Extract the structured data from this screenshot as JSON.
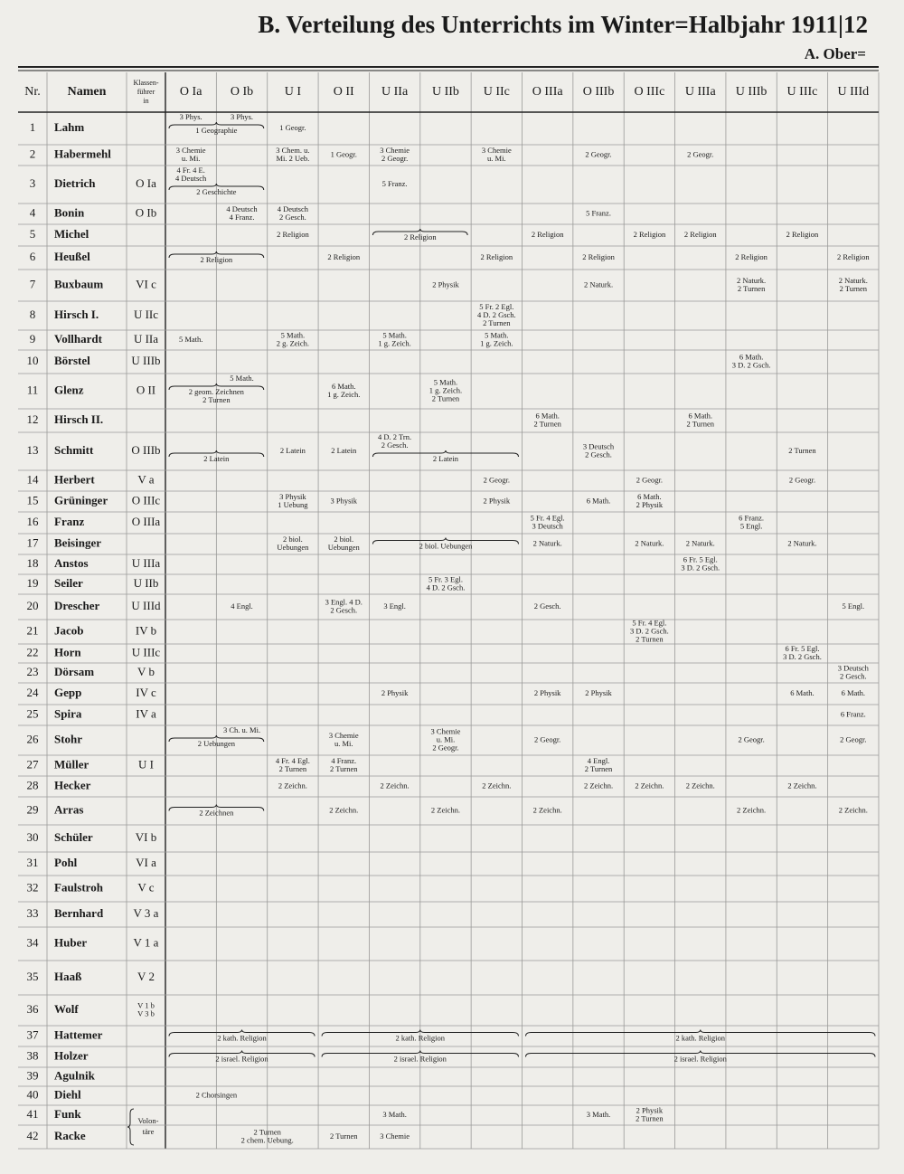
{
  "header": {
    "title": "B. Verteilung des Unterrichts im Winter=Halbjahr 1911|12",
    "section": "A. Ober="
  },
  "table": {
    "columns": {
      "nr": "Nr.",
      "name": "Namen",
      "leader": [
        "Klassen-",
        "führer",
        "in"
      ],
      "classes": [
        "O Ia",
        "O Ib",
        "U I",
        "O II",
        "U IIa",
        "U IIb",
        "U IIc",
        "O IIIa",
        "O IIIb",
        "O IIIc",
        "U IIIa",
        "U IIIb",
        "U IIIc",
        "U IIId"
      ]
    },
    "rows": [
      {
        "nr": 1,
        "name": "Lahm",
        "entries": [
          {
            "col": 0,
            "text": "3 Phys."
          },
          {
            "col": 1,
            "text": "3 Phys."
          },
          {
            "col": 0,
            "span": 2,
            "brace": true,
            "text": "1 Geographie"
          },
          {
            "col": 2,
            "text": "1 Geogr."
          }
        ]
      },
      {
        "nr": 2,
        "name": "Habermehl",
        "entries": [
          {
            "col": 0,
            "text": [
              "3 Chemie",
              "u. Mi."
            ]
          },
          {
            "col": 2,
            "text": [
              "3 Chem. u.",
              "Mi. 2 Ueb."
            ]
          },
          {
            "col": 3,
            "text": "1 Geogr."
          },
          {
            "col": 4,
            "text": [
              "3 Chemie",
              "2 Geogr."
            ]
          },
          {
            "col": 6,
            "text": [
              "3 Chemie",
              "u. Mi."
            ]
          },
          {
            "col": 8,
            "text": "2 Geogr."
          },
          {
            "col": 10,
            "text": "2 Geogr."
          }
        ]
      },
      {
        "nr": 3,
        "name": "Dietrich",
        "leader": "O Ia",
        "entries": [
          {
            "col": 0,
            "text": [
              "4 Fr. 4 E.",
              "4 Deutsch"
            ]
          },
          {
            "col": 0,
            "span": 2,
            "brace": true,
            "text": "2 Geschichte"
          },
          {
            "col": 4,
            "text": "5 Franz."
          }
        ]
      },
      {
        "nr": 4,
        "name": "Bonin",
        "leader": "O Ib",
        "entries": [
          {
            "col": 1,
            "text": [
              "4 Deutsch",
              "4 Franz."
            ]
          },
          {
            "col": 2,
            "text": [
              "4 Deutsch",
              "2 Gesch."
            ]
          },
          {
            "col": 8,
            "text": "5 Franz."
          }
        ]
      },
      {
        "nr": 5,
        "name": "Michel",
        "entries": [
          {
            "col": 2,
            "text": "2 Religion"
          },
          {
            "col": 4,
            "span": 2,
            "brace": true,
            "text": "2 Religion"
          },
          {
            "col": 7,
            "text": "2 Religion"
          },
          {
            "col": 9,
            "text": "2 Religion"
          },
          {
            "col": 10,
            "text": "2 Religion"
          },
          {
            "col": 12,
            "text": "2 Religion"
          }
        ]
      },
      {
        "nr": 6,
        "name": "Heußel",
        "entries": [
          {
            "col": 0,
            "span": 2,
            "brace": true,
            "text": "2 Religion"
          },
          {
            "col": 3,
            "text": "2 Religion"
          },
          {
            "col": 6,
            "text": "2 Religion"
          },
          {
            "col": 8,
            "text": "2 Religion"
          },
          {
            "col": 11,
            "text": "2 Religion"
          },
          {
            "col": 13,
            "text": "2 Religion"
          }
        ]
      },
      {
        "nr": 7,
        "name": "Buxbaum",
        "leader": "VI c",
        "entries": [
          {
            "col": 5,
            "text": "2 Physik"
          },
          {
            "col": 8,
            "text": "2 Naturk."
          },
          {
            "col": 11,
            "text": [
              "2 Naturk.",
              "2 Turnen"
            ]
          },
          {
            "col": 13,
            "text": [
              "2 Naturk.",
              "2 Turnen"
            ]
          }
        ]
      },
      {
        "nr": 8,
        "name": "Hirsch I.",
        "leader": "U IIc",
        "entries": [
          {
            "col": 6,
            "text": [
              "5 Fr. 2 Egl.",
              "4 D. 2 Gsch.",
              "2 Turnen"
            ]
          }
        ]
      },
      {
        "nr": 9,
        "name": "Vollhardt",
        "leader": "U IIa",
        "entries": [
          {
            "col": 0,
            "text": "5 Math."
          },
          {
            "col": 2,
            "text": [
              "5 Math.",
              "2 g. Zeich."
            ]
          },
          {
            "col": 4,
            "text": [
              "5 Math.",
              "1 g. Zeich."
            ]
          },
          {
            "col": 6,
            "text": [
              "5 Math.",
              "1 g. Zeich."
            ]
          }
        ]
      },
      {
        "nr": 10,
        "name": "Börstel",
        "leader": "U IIIb",
        "entries": [
          {
            "col": 11,
            "text": [
              "6 Math.",
              "3 D. 2 Gsch."
            ]
          }
        ]
      },
      {
        "nr": 11,
        "name": "Glenz",
        "leader": "O II",
        "entries": [
          {
            "col": 1,
            "text": "5 Math."
          },
          {
            "col": 0,
            "span": 2,
            "brace": true,
            "text": [
              "2 geom. Zeichnen",
              "2 Turnen"
            ]
          },
          {
            "col": 3,
            "text": [
              "6 Math.",
              "1 g. Zeich."
            ]
          },
          {
            "col": 5,
            "text": [
              "5 Math.",
              "1 g. Zeich.",
              "2 Turnen"
            ]
          }
        ]
      },
      {
        "nr": 12,
        "name": "Hirsch II.",
        "entries": [
          {
            "col": 7,
            "text": [
              "6 Math.",
              "2 Turnen"
            ]
          },
          {
            "col": 10,
            "text": [
              "6 Math.",
              "2 Turnen"
            ]
          }
        ]
      },
      {
        "nr": 13,
        "name": "Schmitt",
        "leader": "O IIIb",
        "entries": [
          {
            "col": 0,
            "span": 2,
            "brace": true,
            "text": "2 Latein"
          },
          {
            "col": 2,
            "text": "2 Latein"
          },
          {
            "col": 3,
            "text": "2 Latein"
          },
          {
            "col": 4,
            "text": [
              "4 D. 2 Trn.",
              "2 Gesch."
            ]
          },
          {
            "col": 4,
            "span": 3,
            "brace": true,
            "text": "2 Latein"
          },
          {
            "col": 8,
            "text": [
              "3 Deutsch",
              "2 Gesch."
            ]
          },
          {
            "col": 12,
            "text": "2 Turnen"
          }
        ]
      },
      {
        "nr": 14,
        "name": "Herbert",
        "leader": "V a",
        "entries": [
          {
            "col": 6,
            "text": "2 Geogr."
          },
          {
            "col": 9,
            "text": "2 Geogr."
          },
          {
            "col": 12,
            "text": "2 Geogr."
          }
        ]
      },
      {
        "nr": 15,
        "name": "Grüninger",
        "leader": "O IIIc",
        "entries": [
          {
            "col": 2,
            "text": [
              "3 Physik",
              "1 Uebung"
            ]
          },
          {
            "col": 3,
            "text": "3 Physik"
          },
          {
            "col": 6,
            "text": "2 Physik"
          },
          {
            "col": 8,
            "text": "6 Math."
          },
          {
            "col": 9,
            "text": [
              "6 Math.",
              "2 Physik"
            ]
          }
        ]
      },
      {
        "nr": 16,
        "name": "Franz",
        "leader": "O IIIa",
        "entries": [
          {
            "col": 7,
            "text": [
              "5 Fr. 4 Egl.",
              "3 Deutsch"
            ]
          },
          {
            "col": 11,
            "text": [
              "6 Franz.",
              "5 Engl."
            ]
          }
        ]
      },
      {
        "nr": 17,
        "name": "Beisinger",
        "entries": [
          {
            "col": 2,
            "text": [
              "2 biol.",
              "Uebungen"
            ]
          },
          {
            "col": 3,
            "text": [
              "2 biol.",
              "Uebungen"
            ]
          },
          {
            "col": 4,
            "span": 3,
            "brace": true,
            "text": "2 biol. Uebungen"
          },
          {
            "col": 7,
            "text": "2 Naturk."
          },
          {
            "col": 9,
            "text": "2 Naturk."
          },
          {
            "col": 10,
            "text": "2 Naturk."
          },
          {
            "col": 12,
            "text": "2 Naturk."
          }
        ]
      },
      {
        "nr": 18,
        "name": "Anstos",
        "leader": "U IIIa",
        "entries": [
          {
            "col": 10,
            "text": [
              "6 Fr. 5 Egl.",
              "3 D. 2 Gsch."
            ]
          }
        ]
      },
      {
        "nr": 19,
        "name": "Seiler",
        "leader": "U IIb",
        "entries": [
          {
            "col": 5,
            "text": [
              "5 Fr. 3 Egl.",
              "4 D. 2 Gsch."
            ]
          }
        ]
      },
      {
        "nr": 20,
        "name": "Drescher",
        "leader": "U IIId",
        "entries": [
          {
            "col": 1,
            "text": "4 Engl."
          },
          {
            "col": 3,
            "text": [
              "3 Engl. 4 D.",
              "2 Gesch."
            ]
          },
          {
            "col": 4,
            "text": "3 Engl."
          },
          {
            "col": 7,
            "text": "2 Gesch."
          },
          {
            "col": 13,
            "text": "5 Engl."
          }
        ]
      },
      {
        "nr": 21,
        "name": "Jacob",
        "leader": "IV b",
        "entries": [
          {
            "col": 9,
            "text": [
              "5 Fr. 4 Egl.",
              "3 D. 2 Gsch.",
              "2 Turnen"
            ]
          }
        ]
      },
      {
        "nr": 22,
        "name": "Horn",
        "leader": "U IIIc",
        "entries": [
          {
            "col": 12,
            "text": [
              "6 Fr. 5 Egl.",
              "3 D. 2 Gsch."
            ]
          }
        ]
      },
      {
        "nr": 23,
        "name": "Dörsam",
        "leader": "V b",
        "entries": [
          {
            "col": 13,
            "text": [
              "3 Deutsch",
              "2 Gesch."
            ]
          }
        ]
      },
      {
        "nr": 24,
        "name": "Gepp",
        "leader": "IV c",
        "entries": [
          {
            "col": 4,
            "text": "2 Physik"
          },
          {
            "col": 7,
            "text": "2 Physik"
          },
          {
            "col": 8,
            "text": "2 Physik"
          },
          {
            "col": 12,
            "text": "6 Math."
          },
          {
            "col": 13,
            "text": "6 Math."
          }
        ]
      },
      {
        "nr": 25,
        "name": "Spira",
        "leader": "IV a",
        "entries": [
          {
            "col": 13,
            "text": "6 Franz."
          }
        ]
      },
      {
        "nr": 26,
        "name": "Stohr",
        "entries": [
          {
            "col": 1,
            "text": "3 Ch. u. Mi."
          },
          {
            "col": 0,
            "span": 2,
            "brace": true,
            "text": "2 Uebungen"
          },
          {
            "col": 3,
            "text": [
              "3 Chemie",
              "u. Mi."
            ]
          },
          {
            "col": 5,
            "text": [
              "3 Chemie",
              "u. Mi.",
              "2 Geogr."
            ]
          },
          {
            "col": 7,
            "text": "2 Geogr."
          },
          {
            "col": 11,
            "text": "2 Geogr."
          },
          {
            "col": 13,
            "text": "2 Geogr."
          }
        ]
      },
      {
        "nr": 27,
        "name": "Müller",
        "leader": "U I",
        "entries": [
          {
            "col": 2,
            "text": [
              "4 Fr. 4 Egl.",
              "2 Turnen"
            ]
          },
          {
            "col": 3,
            "text": [
              "4 Franz.",
              "2 Turnen"
            ]
          },
          {
            "col": 8,
            "text": [
              "4 Engl.",
              "2 Turnen"
            ]
          }
        ]
      },
      {
        "nr": 28,
        "name": "Hecker",
        "entries": [
          {
            "col": 2,
            "text": "2 Zeichn."
          },
          {
            "col": 4,
            "text": "2 Zeichn."
          },
          {
            "col": 6,
            "text": "2 Zeichn."
          },
          {
            "col": 8,
            "text": "2 Zeichn."
          },
          {
            "col": 9,
            "text": "2 Zeichn."
          },
          {
            "col": 10,
            "text": "2 Zeichn."
          },
          {
            "col": 12,
            "text": "2 Zeichn."
          }
        ]
      },
      {
        "nr": 29,
        "name": "Arras",
        "entries": [
          {
            "col": 0,
            "span": 2,
            "brace": true,
            "text": "2 Zeichnen"
          },
          {
            "col": 3,
            "text": "2 Zeichn."
          },
          {
            "col": 5,
            "text": "2 Zeichn."
          },
          {
            "col": 7,
            "text": "2 Zeichn."
          },
          {
            "col": 11,
            "text": "2 Zeichn."
          },
          {
            "col": 13,
            "text": "2 Zeichn."
          }
        ]
      },
      {
        "nr": 30,
        "name": "Schüler",
        "leader": "VI b",
        "entries": []
      },
      {
        "nr": 31,
        "name": "Pohl",
        "leader": "VI a",
        "entries": []
      },
      {
        "nr": 32,
        "name": "Faulstroh",
        "leader": "V c",
        "entries": []
      },
      {
        "nr": 33,
        "name": "Bernhard",
        "leader": "V 3 a",
        "entries": []
      },
      {
        "nr": 34,
        "name": "Huber",
        "leader": "V 1 a",
        "entries": []
      },
      {
        "nr": 35,
        "name": "Haaß",
        "leader": "V 2",
        "entries": []
      },
      {
        "nr": 36,
        "name": "Wolf",
        "leader": [
          "V 1 b",
          "V 3 b"
        ],
        "entries": []
      },
      {
        "nr": 37,
        "name": "Hattemer",
        "entries": [
          {
            "col": 0,
            "span": 3,
            "brace": true,
            "text": "2 kath. Religion"
          },
          {
            "col": 3,
            "span": 4,
            "brace": true,
            "text": "2 kath. Religion"
          },
          {
            "col": 7,
            "span": 7,
            "brace": true,
            "text": "2 kath. Religion"
          }
        ]
      },
      {
        "nr": 38,
        "name": "Holzer",
        "entries": [
          {
            "col": 0,
            "span": 3,
            "brace": true,
            "text": "2 israel. Religion"
          },
          {
            "col": 3,
            "span": 4,
            "brace": true,
            "text": "2 israel. Religion"
          },
          {
            "col": 7,
            "span": 7,
            "brace": true,
            "text": "2 israel. Religion"
          }
        ]
      },
      {
        "nr": 39,
        "name": "Agulnik",
        "entries": []
      },
      {
        "nr": 40,
        "name": "Diehl",
        "entries": [
          {
            "col": 0,
            "span": 2,
            "text": "2 Chorsingen"
          }
        ]
      },
      {
        "nr": 41,
        "name": "Funk",
        "entries": [
          {
            "col": 4,
            "text": "3 Math."
          },
          {
            "col": 8,
            "text": "3 Math."
          },
          {
            "col": 9,
            "text": [
              "2 Physik",
              "2 Turnen"
            ]
          }
        ]
      },
      {
        "nr": 42,
        "name": "Racke",
        "entries": [
          {
            "col": 1,
            "span": 2,
            "text": [
              "2 Turnen",
              "2 chem. Uebung."
            ]
          },
          {
            "col": 3,
            "text": "2 Turnen"
          },
          {
            "col": 4,
            "text": "3 Chemie"
          }
        ]
      }
    ],
    "volunteer_label": [
      "Volon-",
      "täre"
    ]
  }
}
